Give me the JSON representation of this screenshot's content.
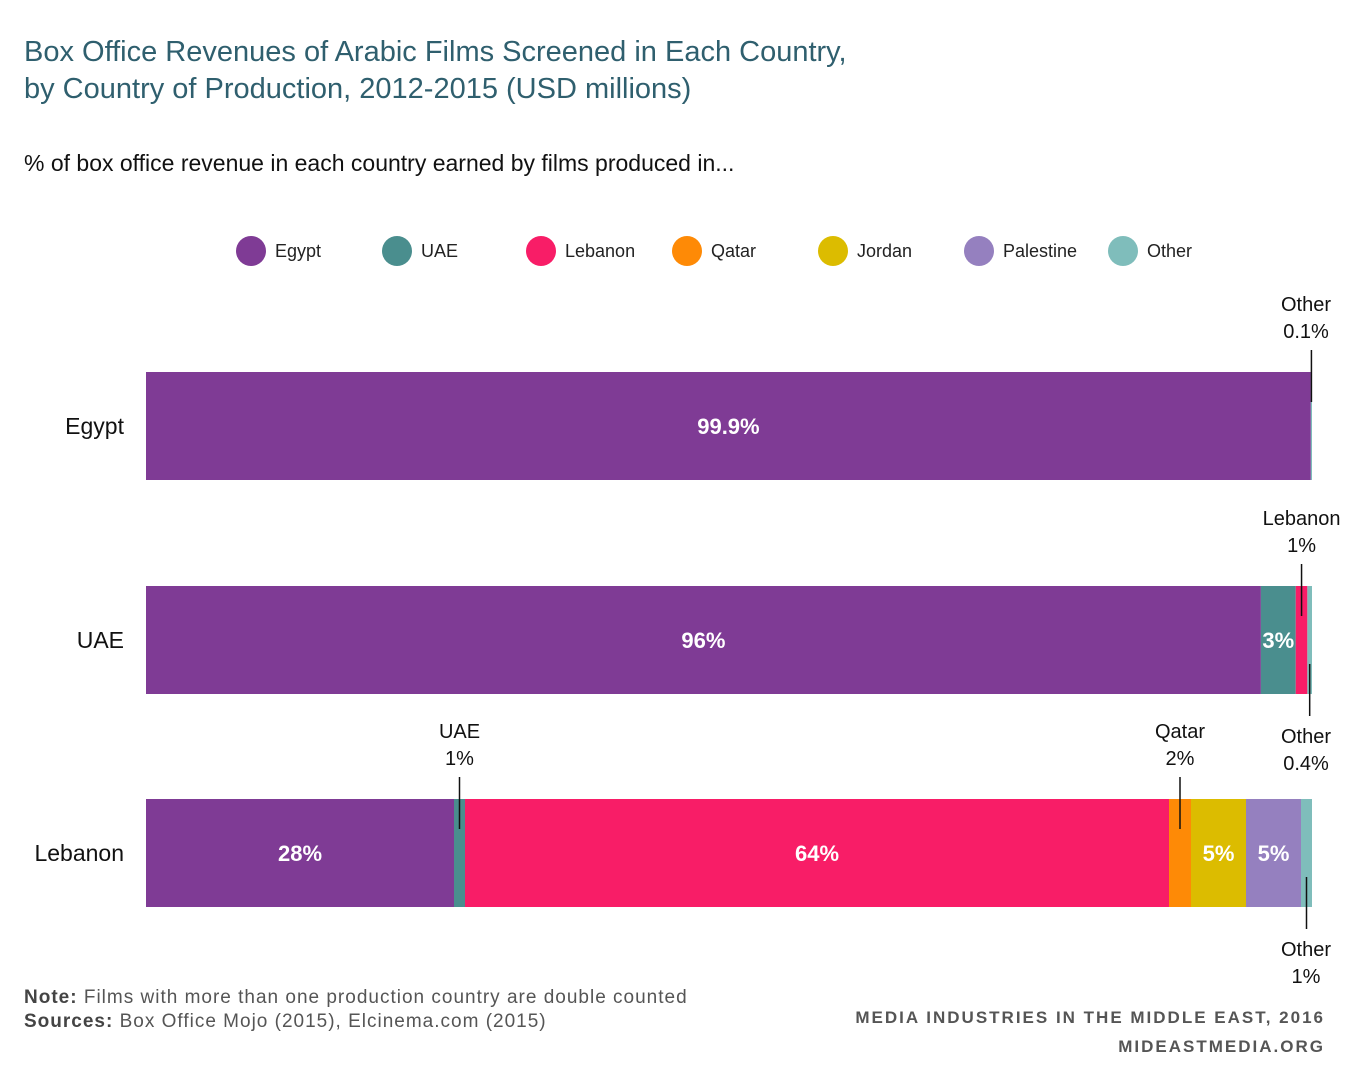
{
  "title_line1": "Box Office Revenues of Arabic Films Screened in Each Country,",
  "title_line2": "by Country of Production, 2012-2015 (USD millions)",
  "subtitle": "% of box office revenue in each country earned by films produced in...",
  "colors": {
    "Egypt": "#7f3b95",
    "UAE": "#4a8e8e",
    "Lebanon": "#f81d67",
    "Qatar": "#fe8a06",
    "Jordan": "#dcbc00",
    "Palestine": "#9580bf",
    "Other": "#7fbdbb"
  },
  "chart_data": {
    "type": "bar",
    "orientation": "horizontal",
    "stacked": true,
    "unit": "%",
    "legend_position": "top",
    "legend": [
      "Egypt",
      "UAE",
      "Lebanon",
      "Qatar",
      "Jordan",
      "Palestine",
      "Other"
    ],
    "categories": [
      "Egypt",
      "UAE",
      "Lebanon"
    ],
    "series": [
      {
        "name": "Egypt",
        "values": [
          99.9,
          96,
          28
        ]
      },
      {
        "name": "UAE",
        "values": [
          0,
          3,
          1
        ]
      },
      {
        "name": "Lebanon",
        "values": [
          0,
          1,
          64
        ]
      },
      {
        "name": "Qatar",
        "values": [
          0,
          0,
          2
        ]
      },
      {
        "name": "Jordan",
        "values": [
          0,
          0,
          5
        ]
      },
      {
        "name": "Palestine",
        "values": [
          0,
          0,
          5
        ]
      },
      {
        "name": "Other",
        "values": [
          0.1,
          0.4,
          1
        ]
      }
    ],
    "inside_labels": [
      {
        "category": "Egypt",
        "series": "Egypt",
        "text": "99.9%"
      },
      {
        "category": "UAE",
        "series": "Egypt",
        "text": "96%"
      },
      {
        "category": "UAE",
        "series": "UAE",
        "text": "3%"
      },
      {
        "category": "Lebanon",
        "series": "Egypt",
        "text": "28%"
      },
      {
        "category": "Lebanon",
        "series": "Lebanon",
        "text": "64%"
      },
      {
        "category": "Lebanon",
        "series": "Jordan",
        "text": "5%"
      },
      {
        "category": "Lebanon",
        "series": "Palestine",
        "text": "5%"
      }
    ],
    "callouts": [
      {
        "category": "Egypt",
        "series": "Other",
        "side": "above",
        "name": "Other",
        "value": "0.1%"
      },
      {
        "category": "UAE",
        "series": "Lebanon",
        "side": "above",
        "name": "Lebanon",
        "value": "1%"
      },
      {
        "category": "UAE",
        "series": "Other",
        "side": "below",
        "name": "Other",
        "value": "0.4%"
      },
      {
        "category": "Lebanon",
        "series": "UAE",
        "side": "above",
        "name": "UAE",
        "value": "1%"
      },
      {
        "category": "Lebanon",
        "series": "Qatar",
        "side": "above",
        "name": "Qatar",
        "value": "2%"
      },
      {
        "category": "Lebanon",
        "series": "Other",
        "side": "below",
        "name": "Other",
        "value": "1%"
      }
    ]
  },
  "note_label": "Note:",
  "note_text": " Films with more than one production country are double counted",
  "sources_label": "Sources:",
  "sources_text": " Box Office Mojo (2015), Elcinema.com (2015)",
  "credit_line1": "MEDIA INDUSTRIES IN THE MIDDLE EAST, 2016",
  "credit_line2": "MIDEASTMEDIA.ORG"
}
